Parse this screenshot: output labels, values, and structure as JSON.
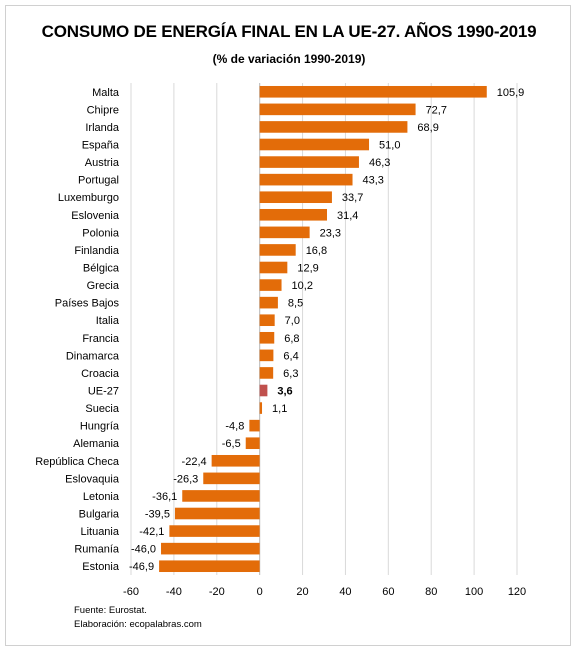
{
  "chart_data": {
    "type": "bar",
    "orientation": "horizontal",
    "title": "CONSUMO DE ENERGÍA FINAL EN LA UE-27. AÑOS 1990-2019",
    "subtitle": "(% de variación 1990-2019)",
    "categories": [
      "Malta",
      "Chipre",
      "Irlanda",
      "España",
      "Austria",
      "Portugal",
      "Luxemburgo",
      "Eslovenia",
      "Polonia",
      "Finlandia",
      "Bélgica",
      "Grecia",
      "Países Bajos",
      "Italia",
      "Francia",
      "Dinamarca",
      "Croacia",
      "UE-27",
      "Suecia",
      "Hungría",
      "Alemania",
      "República Checa",
      "Eslovaquia",
      "Letonia",
      "Bulgaria",
      "Lituania",
      "Rumanía",
      "Estonia"
    ],
    "values": [
      105.9,
      72.7,
      68.9,
      51.0,
      46.3,
      43.3,
      33.7,
      31.4,
      23.3,
      16.8,
      12.9,
      10.2,
      8.5,
      7.0,
      6.8,
      6.4,
      6.3,
      3.6,
      1.1,
      -4.8,
      -6.5,
      -22.4,
      -26.3,
      -36.1,
      -39.5,
      -42.1,
      -46.0,
      -46.9
    ],
    "value_labels": [
      "105,9",
      "72,7",
      "68,9",
      "51,0",
      "46,3",
      "43,3",
      "33,7",
      "31,4",
      "23,3",
      "16,8",
      "12,9",
      "10,2",
      "8,5",
      "7,0",
      "6,8",
      "6,4",
      "6,3",
      "3,6",
      "1,1",
      "-4,8",
      "-6,5",
      "-22,4",
      "-26,3",
      "-36,1",
      "-39,5",
      "-42,1",
      "-46,0",
      "-46,9"
    ],
    "highlight_category": "UE-27",
    "xlim": [
      -60,
      120
    ],
    "xticks": [
      -60,
      -40,
      -20,
      0,
      20,
      40,
      60,
      80,
      100,
      120
    ],
    "grid": true,
    "colors": {
      "bar": "#E36C09",
      "highlight": "#C0504D",
      "grid": "#d9d9d9"
    }
  },
  "footer": {
    "source": "Fuente: Eurostat.",
    "elaboration": "Elaboración: ecopalabras.com"
  }
}
